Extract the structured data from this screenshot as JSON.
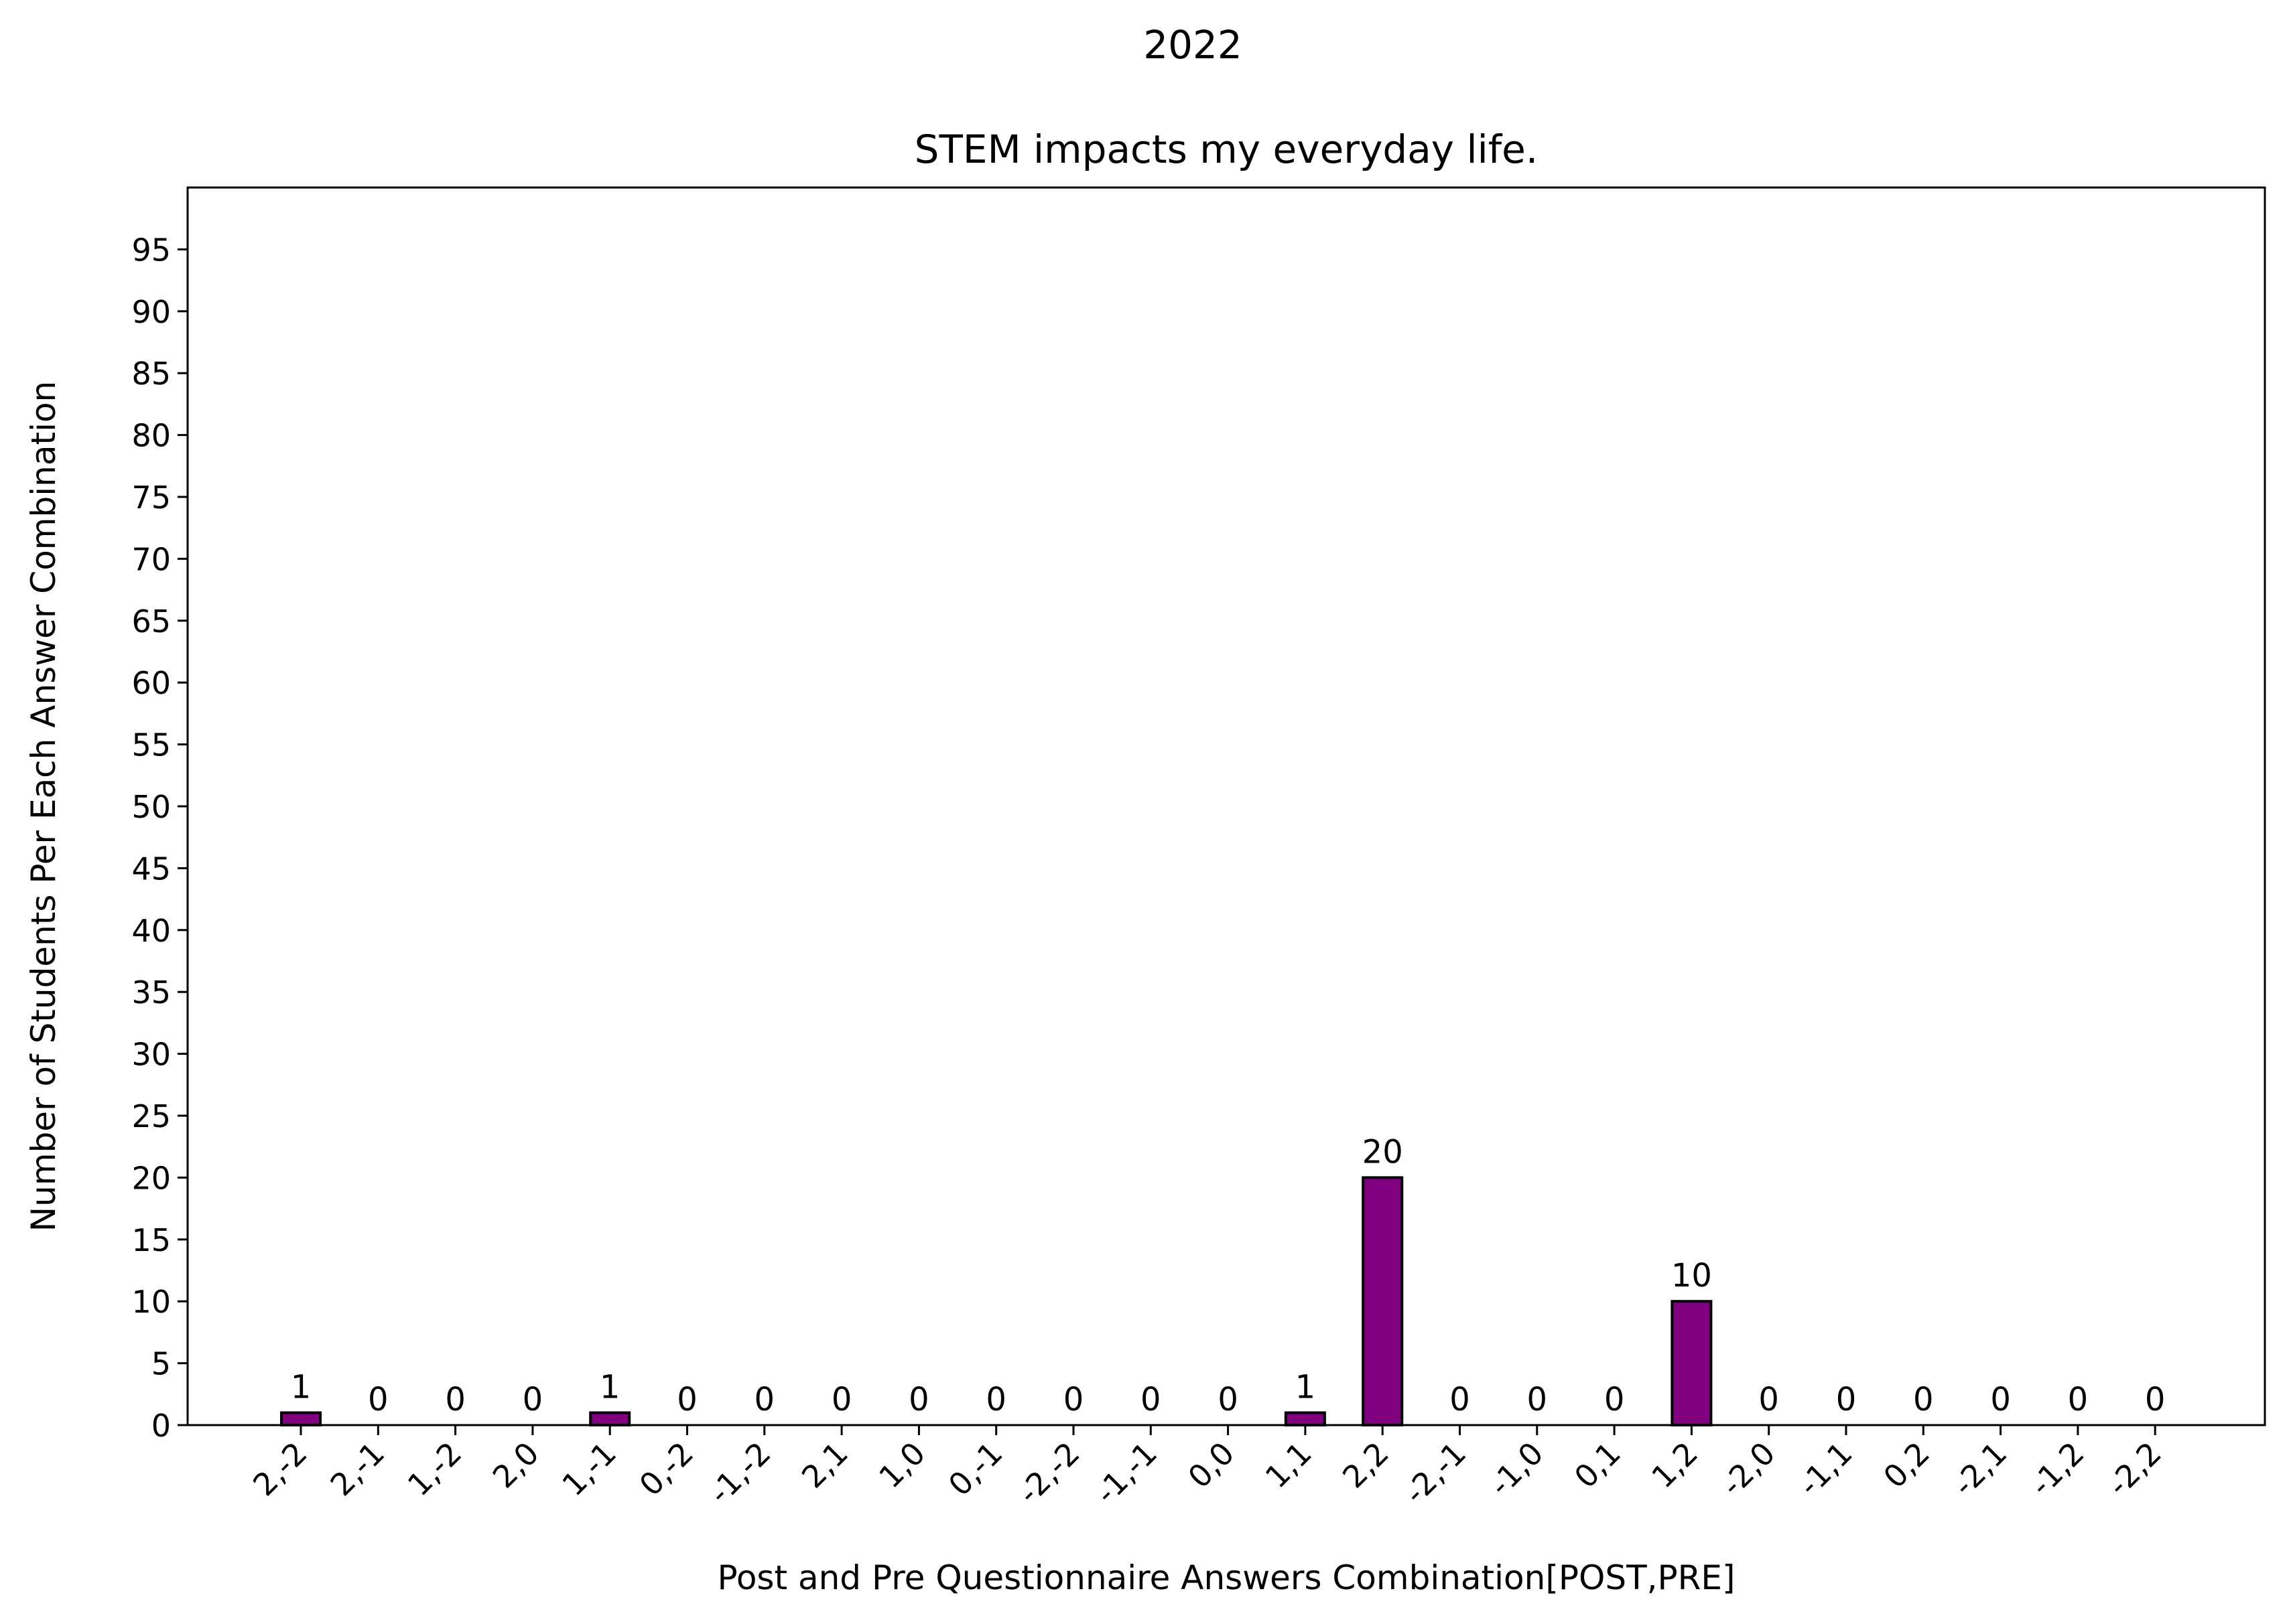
{
  "chart_data": {
    "type": "bar",
    "suptitle": "2022",
    "title": "STEM impacts my everyday life.",
    "xlabel": "Post and Pre Questionnaire Answers Combination[POST,PRE]",
    "ylabel": "Number of Students Per Each Answer Combination",
    "categories": [
      "2,-2",
      "2,-1",
      "1,-2",
      "2,0",
      "1,-1",
      "0,-2",
      "-1,-2",
      "2,1",
      "1,0",
      "0,-1",
      "-2,-2",
      "-1,-1",
      "0,0",
      "1,1",
      "2,2",
      "-2,-1",
      "-1,0",
      "0,1",
      "1,2",
      "-2,0",
      "-1,1",
      "0,2",
      "-2,1",
      "-1,2",
      "-2,2"
    ],
    "values": [
      1,
      0,
      0,
      0,
      1,
      0,
      0,
      0,
      0,
      0,
      0,
      0,
      0,
      1,
      20,
      0,
      0,
      0,
      10,
      0,
      0,
      0,
      0,
      0,
      0
    ],
    "ylim": [
      0,
      100
    ],
    "yticks": [
      0,
      5,
      10,
      15,
      20,
      25,
      30,
      35,
      40,
      45,
      50,
      55,
      60,
      65,
      70,
      75,
      80,
      85,
      90,
      95
    ],
    "bar_color": "#800080",
    "edge_color": "#000000",
    "grid": false
  }
}
